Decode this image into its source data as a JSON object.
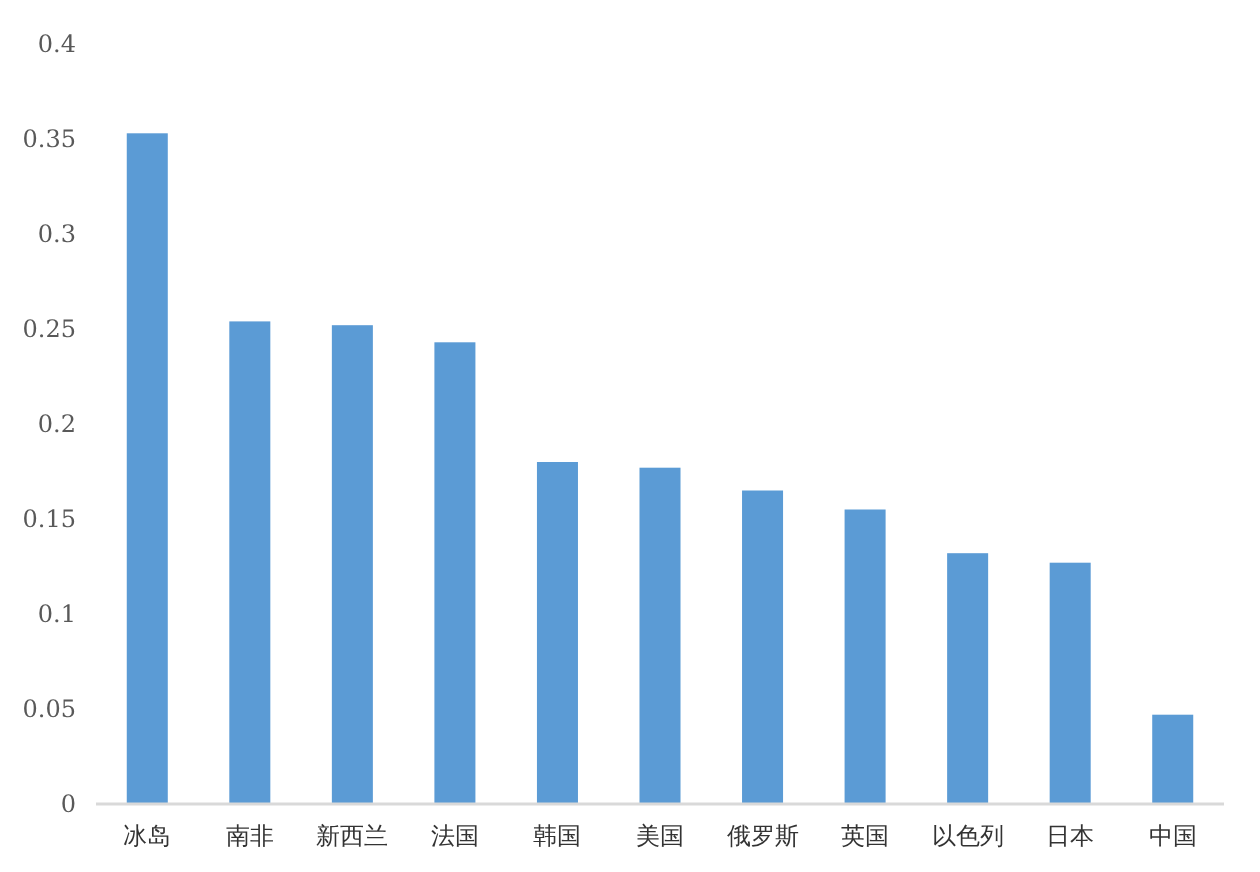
{
  "chart_data": {
    "type": "bar",
    "categories": [
      "冰岛",
      "南非",
      "新西兰",
      "法国",
      "韩国",
      "美国",
      "俄罗斯",
      "英国",
      "以色列",
      "日本",
      "中国"
    ],
    "values": [
      0.353,
      0.254,
      0.252,
      0.243,
      0.18,
      0.177,
      0.165,
      0.155,
      0.132,
      0.127,
      0.047
    ],
    "color": "#5b9bd5",
    "ylim": [
      0,
      0.4
    ],
    "yticks": [
      {
        "value": 0,
        "label": "0"
      },
      {
        "value": 0.05,
        "label": "0.05"
      },
      {
        "value": 0.1,
        "label": "0.1"
      },
      {
        "value": 0.15,
        "label": "0.15"
      },
      {
        "value": 0.2,
        "label": "0.2"
      },
      {
        "value": 0.25,
        "label": "0.25"
      },
      {
        "value": 0.3,
        "label": "0.3"
      },
      {
        "value": 0.35,
        "label": "0.35"
      },
      {
        "value": 0.4,
        "label": "0.4"
      }
    ],
    "grid": false
  }
}
